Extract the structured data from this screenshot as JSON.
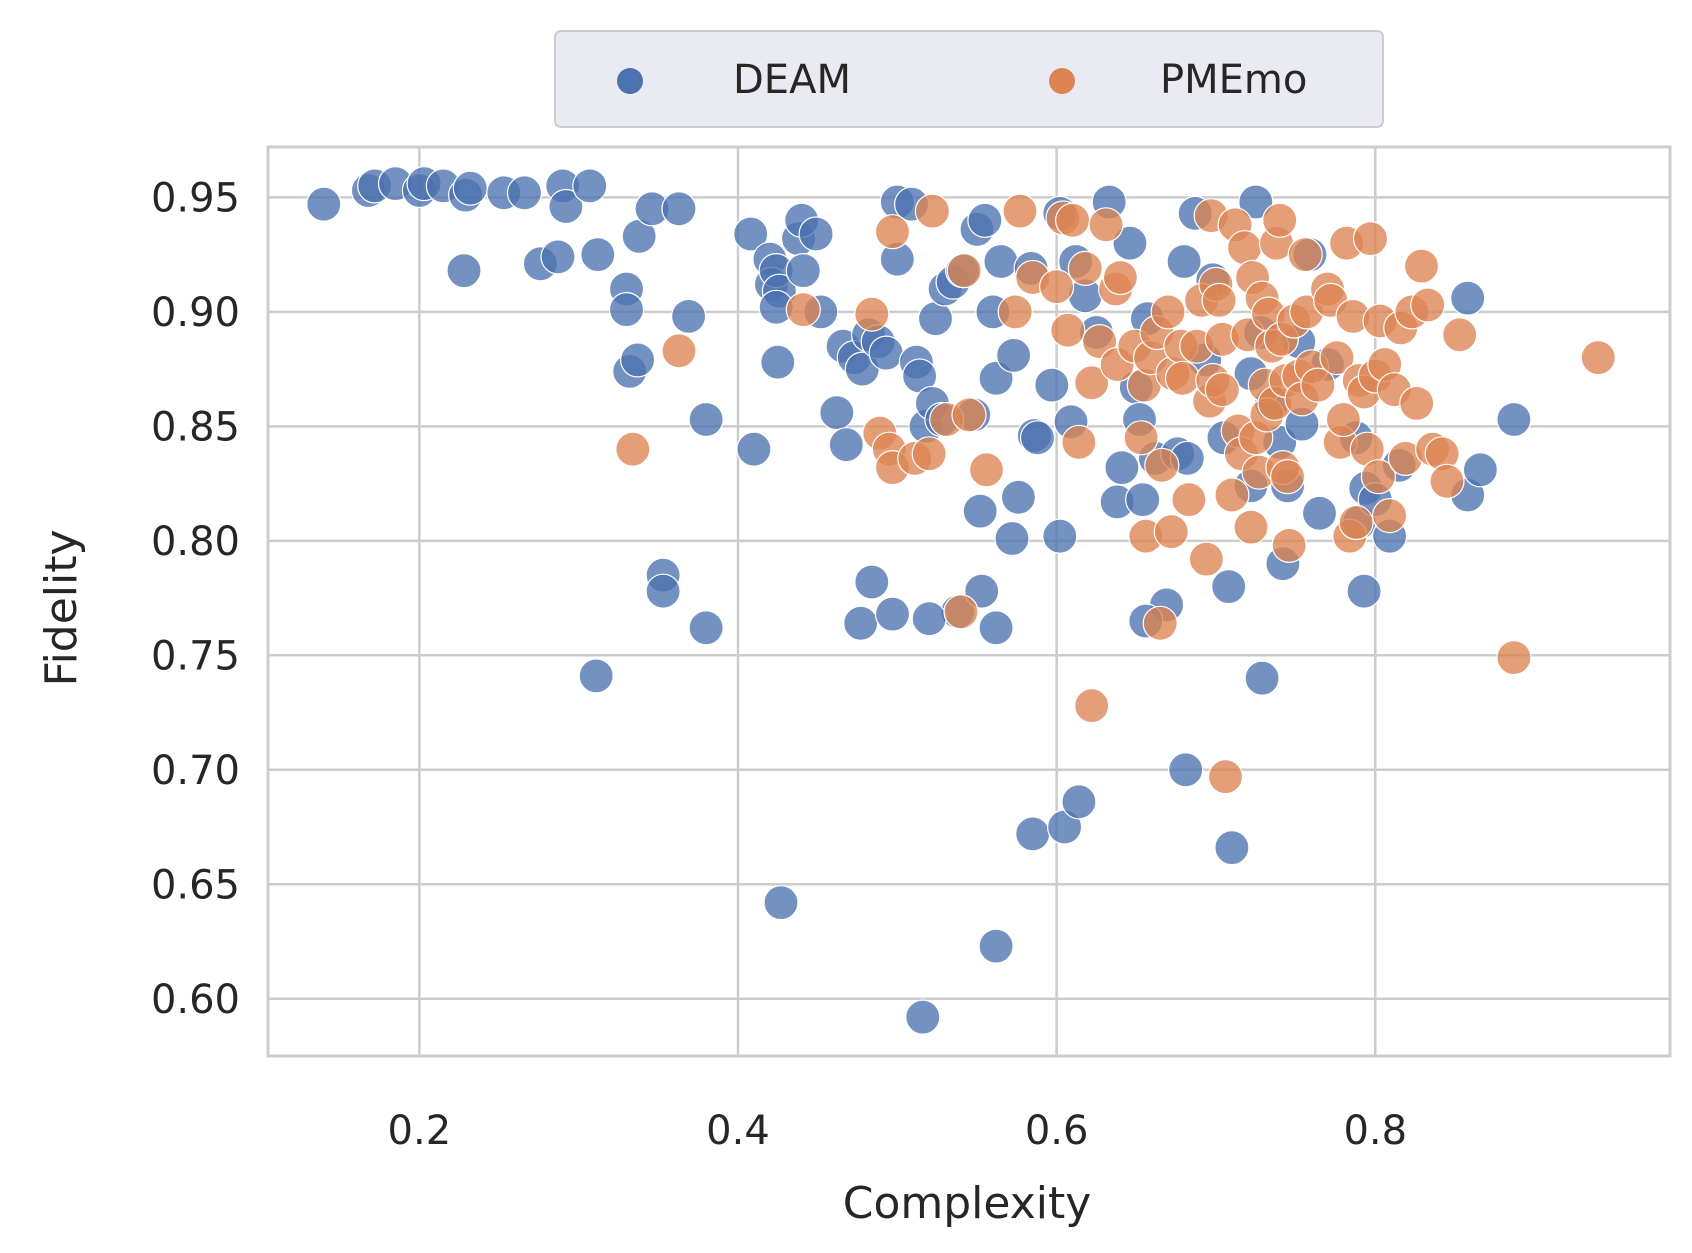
{
  "chart_data": {
    "type": "scatter",
    "title": "",
    "xlabel": "Complexity",
    "ylabel": "Fidelity",
    "xlim": [
      0.105,
      0.985
    ],
    "ylim": [
      0.575,
      0.972
    ],
    "xticks": [
      {
        "value": 0.2,
        "label": "0.2"
      },
      {
        "value": 0.4,
        "label": "0.4"
      },
      {
        "value": 0.6,
        "label": "0.6"
      },
      {
        "value": 0.8,
        "label": "0.8"
      }
    ],
    "yticks": [
      {
        "value": 0.6,
        "label": "0.60"
      },
      {
        "value": 0.65,
        "label": "0.65"
      },
      {
        "value": 0.7,
        "label": "0.70"
      },
      {
        "value": 0.75,
        "label": "0.75"
      },
      {
        "value": 0.8,
        "label": "0.80"
      },
      {
        "value": 0.85,
        "label": "0.85"
      },
      {
        "value": 0.9,
        "label": "0.90"
      },
      {
        "value": 0.95,
        "label": "0.95"
      }
    ],
    "grid": true,
    "legend_position": "top-center",
    "colors": {
      "DEAM": "#4c72b0",
      "PMEmo": "#dd8452",
      "grid": "#cccccc",
      "frame": "#cccccc",
      "legend_bg": "#eaeaf2"
    },
    "series": [
      {
        "name": "DEAM",
        "points": [
          [
            0.14,
            0.947
          ],
          [
            0.168,
            0.953
          ],
          [
            0.172,
            0.955
          ],
          [
            0.185,
            0.956
          ],
          [
            0.2,
            0.953
          ],
          [
            0.203,
            0.956
          ],
          [
            0.215,
            0.955
          ],
          [
            0.229,
            0.951
          ],
          [
            0.232,
            0.954
          ],
          [
            0.253,
            0.952
          ],
          [
            0.266,
            0.952
          ],
          [
            0.29,
            0.955
          ],
          [
            0.292,
            0.946
          ],
          [
            0.307,
            0.955
          ],
          [
            0.228,
            0.918
          ],
          [
            0.276,
            0.921
          ],
          [
            0.287,
            0.924
          ],
          [
            0.312,
            0.925
          ],
          [
            0.33,
            0.91
          ],
          [
            0.33,
            0.901
          ],
          [
            0.338,
            0.933
          ],
          [
            0.346,
            0.945
          ],
          [
            0.363,
            0.945
          ],
          [
            0.332,
            0.874
          ],
          [
            0.337,
            0.879
          ],
          [
            0.369,
            0.898
          ],
          [
            0.38,
            0.853
          ],
          [
            0.353,
            0.785
          ],
          [
            0.353,
            0.778
          ],
          [
            0.38,
            0.762
          ],
          [
            0.311,
            0.741
          ],
          [
            0.408,
            0.934
          ],
          [
            0.41,
            0.84
          ],
          [
            0.42,
            0.923
          ],
          [
            0.421,
            0.912
          ],
          [
            0.424,
            0.918
          ],
          [
            0.426,
            0.909
          ],
          [
            0.424,
            0.902
          ],
          [
            0.425,
            0.878
          ],
          [
            0.438,
            0.932
          ],
          [
            0.44,
            0.94
          ],
          [
            0.441,
            0.918
          ],
          [
            0.449,
            0.934
          ],
          [
            0.452,
            0.9
          ],
          [
            0.462,
            0.856
          ],
          [
            0.466,
            0.885
          ],
          [
            0.468,
            0.842
          ],
          [
            0.473,
            0.88
          ],
          [
            0.478,
            0.875
          ],
          [
            0.482,
            0.89
          ],
          [
            0.488,
            0.887
          ],
          [
            0.493,
            0.882
          ],
          [
            0.484,
            0.782
          ],
          [
            0.477,
            0.764
          ],
          [
            0.497,
            0.768
          ],
          [
            0.427,
            0.642
          ],
          [
            0.5,
            0.948
          ],
          [
            0.5,
            0.923
          ],
          [
            0.509,
            0.947
          ],
          [
            0.512,
            0.878
          ],
          [
            0.514,
            0.872
          ],
          [
            0.518,
            0.85
          ],
          [
            0.522,
            0.86
          ],
          [
            0.524,
            0.897
          ],
          [
            0.528,
            0.853
          ],
          [
            0.53,
            0.91
          ],
          [
            0.535,
            0.913
          ],
          [
            0.538,
            0.769
          ],
          [
            0.541,
            0.918
          ],
          [
            0.548,
            0.855
          ],
          [
            0.55,
            0.936
          ],
          [
            0.555,
            0.94
          ],
          [
            0.552,
            0.813
          ],
          [
            0.553,
            0.778
          ],
          [
            0.56,
            0.9
          ],
          [
            0.562,
            0.871
          ],
          [
            0.562,
            0.762
          ],
          [
            0.565,
            0.922
          ],
          [
            0.573,
            0.881
          ],
          [
            0.572,
            0.801
          ],
          [
            0.576,
            0.819
          ],
          [
            0.584,
            0.919
          ],
          [
            0.586,
            0.846
          ],
          [
            0.588,
            0.845
          ],
          [
            0.597,
            0.868
          ],
          [
            0.602,
            0.943
          ],
          [
            0.602,
            0.802
          ],
          [
            0.609,
            0.852
          ],
          [
            0.612,
            0.922
          ],
          [
            0.618,
            0.907
          ],
          [
            0.625,
            0.891
          ],
          [
            0.633,
            0.948
          ],
          [
            0.638,
            0.817
          ],
          [
            0.641,
            0.832
          ],
          [
            0.646,
            0.93
          ],
          [
            0.65,
            0.867
          ],
          [
            0.652,
            0.853
          ],
          [
            0.654,
            0.818
          ],
          [
            0.657,
            0.897
          ],
          [
            0.662,
            0.836
          ],
          [
            0.669,
            0.772
          ],
          [
            0.676,
            0.838
          ],
          [
            0.682,
            0.836
          ],
          [
            0.68,
            0.922
          ],
          [
            0.687,
            0.943
          ],
          [
            0.693,
            0.879
          ],
          [
            0.698,
            0.914
          ],
          [
            0.705,
            0.845
          ],
          [
            0.708,
            0.78
          ],
          [
            0.722,
            0.873
          ],
          [
            0.722,
            0.824
          ],
          [
            0.725,
            0.948
          ],
          [
            0.728,
            0.891
          ],
          [
            0.735,
            0.86
          ],
          [
            0.74,
            0.843
          ],
          [
            0.742,
            0.79
          ],
          [
            0.745,
            0.824
          ],
          [
            0.752,
            0.887
          ],
          [
            0.754,
            0.851
          ],
          [
            0.759,
            0.925
          ],
          [
            0.765,
            0.812
          ],
          [
            0.77,
            0.877
          ],
          [
            0.788,
            0.845
          ],
          [
            0.79,
            0.808
          ],
          [
            0.793,
            0.778
          ],
          [
            0.794,
            0.823
          ],
          [
            0.8,
            0.818
          ],
          [
            0.809,
            0.802
          ],
          [
            0.815,
            0.833
          ],
          [
            0.858,
            0.906
          ],
          [
            0.858,
            0.82
          ],
          [
            0.866,
            0.831
          ],
          [
            0.887,
            0.853
          ],
          [
            0.585,
            0.672
          ],
          [
            0.605,
            0.675
          ],
          [
            0.614,
            0.686
          ],
          [
            0.71,
            0.666
          ],
          [
            0.681,
            0.7
          ],
          [
            0.729,
            0.74
          ],
          [
            0.656,
            0.765
          ],
          [
            0.52,
            0.766
          ],
          [
            0.516,
            0.592
          ],
          [
            0.562,
            0.623
          ]
        ]
      },
      {
        "name": "PMEmo",
        "points": [
          [
            0.334,
            0.84
          ],
          [
            0.363,
            0.883
          ],
          [
            0.441,
            0.901
          ],
          [
            0.484,
            0.899
          ],
          [
            0.489,
            0.847
          ],
          [
            0.495,
            0.84
          ],
          [
            0.497,
            0.832
          ],
          [
            0.497,
            0.935
          ],
          [
            0.511,
            0.836
          ],
          [
            0.52,
            0.838
          ],
          [
            0.522,
            0.944
          ],
          [
            0.531,
            0.853
          ],
          [
            0.542,
            0.918
          ],
          [
            0.545,
            0.855
          ],
          [
            0.54,
            0.769
          ],
          [
            0.556,
            0.831
          ],
          [
            0.577,
            0.944
          ],
          [
            0.574,
            0.9
          ],
          [
            0.585,
            0.915
          ],
          [
            0.6,
            0.911
          ],
          [
            0.604,
            0.941
          ],
          [
            0.607,
            0.892
          ],
          [
            0.61,
            0.94
          ],
          [
            0.614,
            0.843
          ],
          [
            0.618,
            0.919
          ],
          [
            0.622,
            0.869
          ],
          [
            0.627,
            0.887
          ],
          [
            0.631,
            0.938
          ],
          [
            0.637,
            0.91
          ],
          [
            0.638,
            0.877
          ],
          [
            0.64,
            0.915
          ],
          [
            0.649,
            0.885
          ],
          [
            0.655,
            0.868
          ],
          [
            0.653,
            0.845
          ],
          [
            0.656,
            0.802
          ],
          [
            0.659,
            0.88
          ],
          [
            0.663,
            0.891
          ],
          [
            0.666,
            0.833
          ],
          [
            0.67,
            0.9
          ],
          [
            0.672,
            0.804
          ],
          [
            0.673,
            0.873
          ],
          [
            0.678,
            0.885
          ],
          [
            0.679,
            0.871
          ],
          [
            0.683,
            0.818
          ],
          [
            0.688,
            0.885
          ],
          [
            0.691,
            0.905
          ],
          [
            0.694,
            0.792
          ],
          [
            0.696,
            0.861
          ],
          [
            0.697,
            0.942
          ],
          [
            0.698,
            0.87
          ],
          [
            0.7,
            0.912
          ],
          [
            0.702,
            0.905
          ],
          [
            0.704,
            0.888
          ],
          [
            0.704,
            0.866
          ],
          [
            0.706,
            0.697
          ],
          [
            0.71,
            0.82
          ],
          [
            0.712,
            0.938
          ],
          [
            0.714,
            0.848
          ],
          [
            0.716,
            0.838
          ],
          [
            0.718,
            0.928
          ],
          [
            0.72,
            0.89
          ],
          [
            0.722,
            0.806
          ],
          [
            0.723,
            0.915
          ],
          [
            0.725,
            0.845
          ],
          [
            0.727,
            0.83
          ],
          [
            0.729,
            0.906
          ],
          [
            0.731,
            0.868
          ],
          [
            0.732,
            0.855
          ],
          [
            0.733,
            0.899
          ],
          [
            0.735,
            0.885
          ],
          [
            0.737,
            0.86
          ],
          [
            0.738,
            0.93
          ],
          [
            0.74,
            0.94
          ],
          [
            0.741,
            0.888
          ],
          [
            0.742,
            0.832
          ],
          [
            0.744,
            0.87
          ],
          [
            0.745,
            0.828
          ],
          [
            0.746,
            0.798
          ],
          [
            0.749,
            0.896
          ],
          [
            0.752,
            0.872
          ],
          [
            0.754,
            0.862
          ],
          [
            0.756,
            0.925
          ],
          [
            0.757,
            0.9
          ],
          [
            0.76,
            0.876
          ],
          [
            0.764,
            0.868
          ],
          [
            0.77,
            0.91
          ],
          [
            0.772,
            0.905
          ],
          [
            0.776,
            0.88
          ],
          [
            0.778,
            0.843
          ],
          [
            0.782,
            0.93
          ],
          [
            0.78,
            0.853
          ],
          [
            0.784,
            0.802
          ],
          [
            0.786,
            0.898
          ],
          [
            0.788,
            0.808
          ],
          [
            0.79,
            0.87
          ],
          [
            0.793,
            0.865
          ],
          [
            0.795,
            0.84
          ],
          [
            0.797,
            0.932
          ],
          [
            0.8,
            0.872
          ],
          [
            0.802,
            0.828
          ],
          [
            0.803,
            0.896
          ],
          [
            0.806,
            0.877
          ],
          [
            0.809,
            0.811
          ],
          [
            0.812,
            0.866
          ],
          [
            0.816,
            0.893
          ],
          [
            0.819,
            0.836
          ],
          [
            0.823,
            0.9
          ],
          [
            0.826,
            0.86
          ],
          [
            0.829,
            0.92
          ],
          [
            0.833,
            0.903
          ],
          [
            0.836,
            0.84
          ],
          [
            0.842,
            0.838
          ],
          [
            0.845,
            0.826
          ],
          [
            0.853,
            0.89
          ],
          [
            0.887,
            0.749
          ],
          [
            0.94,
            0.88
          ],
          [
            0.622,
            0.728
          ],
          [
            0.665,
            0.764
          ]
        ]
      }
    ]
  }
}
